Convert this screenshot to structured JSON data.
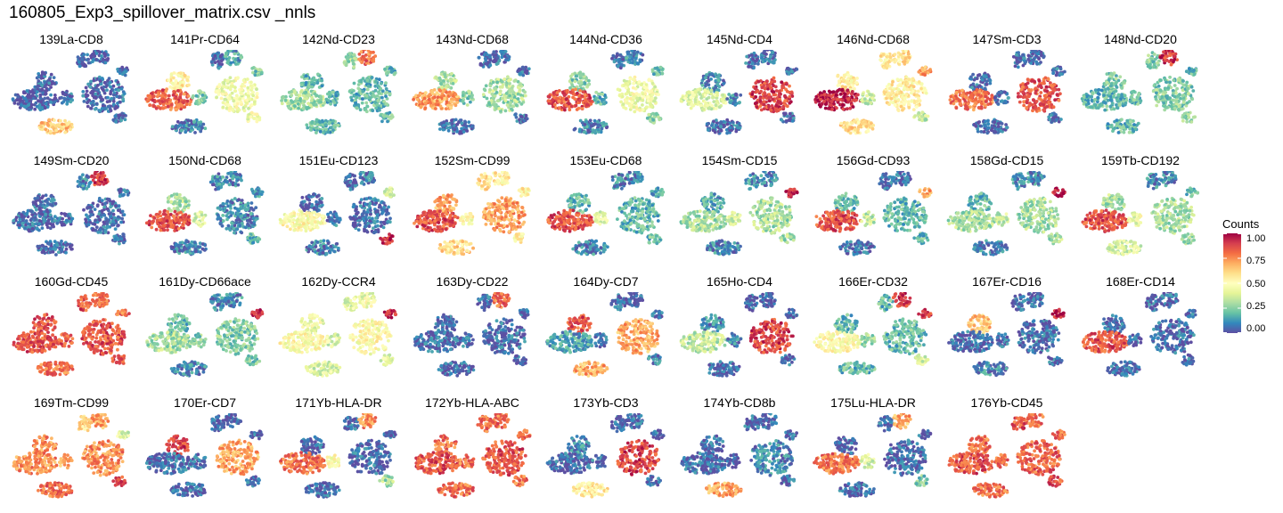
{
  "title": "160805_Exp3_spillover_matrix.csv _nnls",
  "legend": {
    "title": "Counts",
    "ticks": [
      "1.00",
      "0.75",
      "0.50",
      "0.25",
      "0.00"
    ],
    "colors": [
      "#9e0142",
      "#d53e4f",
      "#f46d43",
      "#fdae61",
      "#fee08b",
      "#ffffbf",
      "#e6f598",
      "#abdda4",
      "#66c2a5",
      "#3288bd",
      "#5e4fa2"
    ]
  },
  "chart_data": {
    "type": "scatter",
    "description_of_encoding": "faceted tSNE scatter, color = normalized counts (0-1)",
    "clusters": [
      "c1",
      "c2",
      "c3",
      "c4",
      "c5",
      "c6",
      "c7",
      "c8",
      "c9"
    ],
    "color_range": [
      0,
      1
    ],
    "panels": [
      {
        "label": "139La-CD8",
        "levels": [
          0.02,
          0.02,
          0.05,
          0.05,
          0.02,
          0.65,
          0.05,
          0.05,
          0.05
        ]
      },
      {
        "label": "141Pr-CD64",
        "levels": [
          0.05,
          0.15,
          0.55,
          0.45,
          0.82,
          0.1,
          0.25,
          0.45,
          0.25
        ]
      },
      {
        "label": "142Nd-CD23",
        "levels": [
          0.3,
          0.8,
          0.2,
          0.2,
          0.3,
          0.2,
          0.2,
          0.2,
          0.2
        ]
      },
      {
        "label": "143Nd-CD68",
        "levels": [
          0.05,
          0.05,
          0.3,
          0.3,
          0.72,
          0.05,
          0.25,
          0.05,
          0.05
        ]
      },
      {
        "label": "144Nd-CD36",
        "levels": [
          0.05,
          0.1,
          0.25,
          0.45,
          0.85,
          0.1,
          0.2,
          0.25,
          0.2
        ]
      },
      {
        "label": "145Nd-CD4",
        "levels": [
          0.05,
          0.05,
          0.1,
          0.88,
          0.4,
          0.05,
          0.1,
          0.05,
          0.05
        ]
      },
      {
        "label": "146Nd-CD68",
        "levels": [
          0.55,
          0.6,
          0.55,
          0.55,
          0.95,
          0.6,
          0.35,
          0.35,
          0.7
        ]
      },
      {
        "label": "147Sm-CD3",
        "levels": [
          0.05,
          0.05,
          0.05,
          0.85,
          0.8,
          0.05,
          0.05,
          0.05,
          0.05
        ]
      },
      {
        "label": "148Nd-CD20",
        "levels": [
          0.25,
          0.9,
          0.25,
          0.25,
          0.2,
          0.2,
          0.2,
          0.25,
          0.2
        ]
      },
      {
        "label": "149Sm-CD20",
        "levels": [
          0.1,
          0.9,
          0.05,
          0.05,
          0.05,
          0.05,
          0.05,
          0.05,
          0.05
        ]
      },
      {
        "label": "150Nd-CD68",
        "levels": [
          0.1,
          0.1,
          0.3,
          0.1,
          0.85,
          0.1,
          0.4,
          0.2,
          0.15
        ]
      },
      {
        "label": "151Eu-CD123",
        "levels": [
          0.05,
          0.1,
          0.05,
          0.05,
          0.5,
          0.1,
          0.1,
          0.9,
          0.4
        ]
      },
      {
        "label": "152Sm-CD99",
        "levels": [
          0.6,
          0.55,
          0.7,
          0.72,
          0.85,
          0.6,
          0.5,
          0.55,
          0.55
        ]
      },
      {
        "label": "153Eu-CD68",
        "levels": [
          0.1,
          0.1,
          0.2,
          0.2,
          0.85,
          0.1,
          0.4,
          0.2,
          0.15
        ]
      },
      {
        "label": "154Sm-CD15",
        "levels": [
          0.1,
          0.1,
          0.15,
          0.3,
          0.3,
          0.1,
          0.4,
          0.3,
          0.95
        ]
      },
      {
        "label": "156Gd-CD93",
        "levels": [
          0.05,
          0.05,
          0.2,
          0.2,
          0.85,
          0.05,
          0.35,
          0.2,
          0.7
        ]
      },
      {
        "label": "158Gd-CD15",
        "levels": [
          0.1,
          0.1,
          0.2,
          0.3,
          0.3,
          0.1,
          0.35,
          0.3,
          0.95
        ]
      },
      {
        "label": "159Tb-CD192",
        "levels": [
          0.1,
          0.1,
          0.3,
          0.3,
          0.85,
          0.4,
          0.45,
          0.25,
          0.2
        ]
      },
      {
        "label": "160Gd-CD45",
        "levels": [
          0.85,
          0.8,
          0.85,
          0.85,
          0.85,
          0.8,
          0.85,
          0.85,
          0.8
        ]
      },
      {
        "label": "161Dy-CD66ace",
        "levels": [
          0.1,
          0.1,
          0.2,
          0.25,
          0.3,
          0.1,
          0.25,
          0.25,
          0.95
        ]
      },
      {
        "label": "162Dy-CCR4",
        "levels": [
          0.4,
          0.45,
          0.45,
          0.5,
          0.5,
          0.4,
          0.4,
          0.4,
          0.95
        ]
      },
      {
        "label": "163Dy-CD22",
        "levels": [
          0.05,
          0.8,
          0.05,
          0.05,
          0.05,
          0.05,
          0.05,
          0.05,
          0.05
        ]
      },
      {
        "label": "164Dy-CD7",
        "levels": [
          0.05,
          0.05,
          0.85,
          0.7,
          0.15,
          0.7,
          0.05,
          0.1,
          0.1
        ]
      },
      {
        "label": "165Ho-CD4",
        "levels": [
          0.05,
          0.05,
          0.1,
          0.88,
          0.35,
          0.05,
          0.1,
          0.05,
          0.05
        ]
      },
      {
        "label": "166Er-CD32",
        "levels": [
          0.2,
          0.9,
          0.2,
          0.2,
          0.5,
          0.2,
          0.3,
          0.4,
          0.9
        ]
      },
      {
        "label": "167Er-CD16",
        "levels": [
          0.05,
          0.05,
          0.65,
          0.05,
          0.05,
          0.1,
          0.05,
          0.05,
          0.95
        ]
      },
      {
        "label": "168Er-CD14",
        "levels": [
          0.05,
          0.05,
          0.05,
          0.05,
          0.85,
          0.05,
          0.05,
          0.05,
          0.05
        ]
      },
      {
        "label": "169Tm-CD99",
        "levels": [
          0.6,
          0.7,
          0.75,
          0.75,
          0.75,
          0.8,
          0.7,
          0.85,
          0.4
        ]
      },
      {
        "label": "170Er-CD7",
        "levels": [
          0.05,
          0.05,
          0.88,
          0.7,
          0.05,
          0.05,
          0.05,
          0.05,
          0.05
        ]
      },
      {
        "label": "171Yb-HLA-DR",
        "levels": [
          0.05,
          0.75,
          0.05,
          0.05,
          0.8,
          0.05,
          0.5,
          0.3,
          0.05
        ]
      },
      {
        "label": "172Yb-HLA-ABC",
        "levels": [
          0.8,
          0.8,
          0.8,
          0.85,
          0.85,
          0.8,
          0.8,
          0.8,
          0.8
        ]
      },
      {
        "label": "173Yb-CD3",
        "levels": [
          0.05,
          0.05,
          0.1,
          0.88,
          0.05,
          0.55,
          0.05,
          0.05,
          0.05
        ]
      },
      {
        "label": "174Yb-CD8b",
        "levels": [
          0.05,
          0.05,
          0.05,
          0.1,
          0.05,
          0.7,
          0.05,
          0.05,
          0.05
        ]
      },
      {
        "label": "175Lu-HLA-DR",
        "levels": [
          0.05,
          0.7,
          0.05,
          0.05,
          0.8,
          0.05,
          0.4,
          0.25,
          0.05
        ]
      },
      {
        "label": "176Yb-CD45",
        "levels": [
          0.85,
          0.8,
          0.8,
          0.82,
          0.85,
          0.8,
          0.8,
          0.85,
          0.8
        ]
      }
    ]
  }
}
